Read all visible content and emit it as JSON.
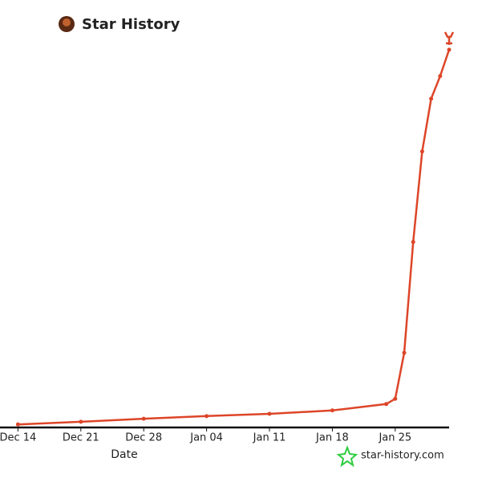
{
  "chart_data": {
    "type": "line",
    "title": "Star History",
    "x_label": "Date",
    "watermark": "star-history.com",
    "x": [
      "Dec 14",
      "Dec 21",
      "Dec 28",
      "Jan 04",
      "Jan 11",
      "Jan 18",
      "Jan 24",
      "Jan 25",
      "Jan 26",
      "Jan 27",
      "Jan 28",
      "Jan 29",
      "Jan 30",
      "Jan 31"
    ],
    "series": [
      {
        "name": "Star History",
        "color": "#dd4528",
        "values": [
          0.6,
          1.3,
          2.1,
          2.8,
          3.4,
          4.3,
          6,
          7.4,
          19.6,
          49,
          73,
          87,
          93,
          100
        ]
      }
    ],
    "xlim": [
      "Dec 12",
      "Jan 31"
    ],
    "xticks": [
      "Dec 14",
      "Dec 21",
      "Dec 28",
      "Jan 04",
      "Jan 11",
      "Jan 18",
      "Jan 25"
    ],
    "ylim": [
      0,
      100
    ]
  }
}
